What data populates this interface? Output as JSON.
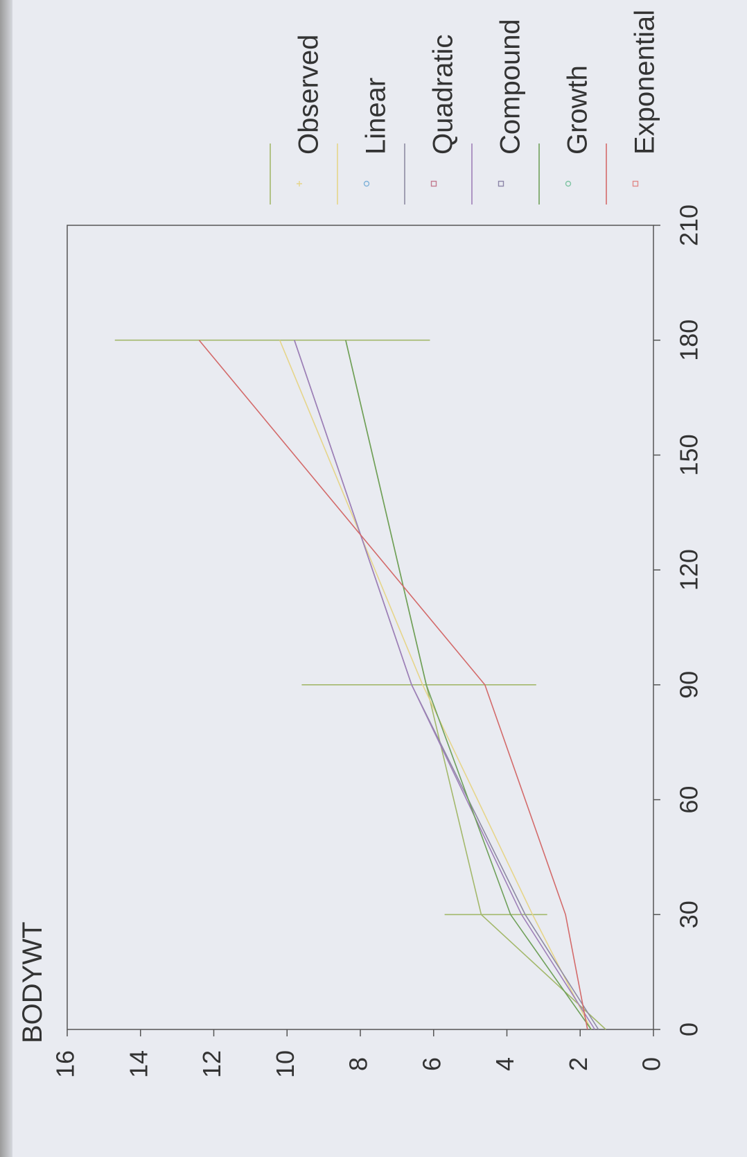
{
  "chart_data": {
    "type": "line",
    "title": "BODYWT",
    "orientation": "rotated-90-ccw",
    "xlim": [
      0,
      210
    ],
    "ylim": [
      0,
      16
    ],
    "x_ticks": [
      "0",
      "30",
      "60",
      "90",
      "120",
      "150",
      "180",
      "210"
    ],
    "y_ticks": [
      "0",
      "2",
      "4",
      "6",
      "8",
      "10",
      "12",
      "14",
      "16"
    ],
    "legend_position": "right",
    "observed": {
      "name": "Observed",
      "color": "#a3b86b",
      "ranges": [
        {
          "x": 30,
          "low": 2.9,
          "high": 5.7
        },
        {
          "x": 90,
          "low": 3.2,
          "high": 9.6
        },
        {
          "x": 180,
          "low": 6.1,
          "high": 14.7
        }
      ],
      "values": [
        {
          "x": 0,
          "y": 1.3
        },
        {
          "x": 30,
          "y": 4.7
        },
        {
          "x": 90,
          "y": 6.2
        },
        {
          "x": 180,
          "y": 8.4
        }
      ]
    },
    "series": [
      {
        "name": "Linear",
        "color": "#e6d58a",
        "marker": "circle",
        "marker_color": "#7fb2d9",
        "values": [
          {
            "x": 0,
            "y": 1.7
          },
          {
            "x": 30,
            "y": 3.3
          },
          {
            "x": 90,
            "y": 6.3
          },
          {
            "x": 180,
            "y": 10.2
          }
        ]
      },
      {
        "name": "Quadratic",
        "color": "#8e8aa3",
        "marker": "square",
        "marker_color": "#c27a8f",
        "values": [
          {
            "x": 0,
            "y": 1.5
          },
          {
            "x": 30,
            "y": 3.5
          },
          {
            "x": 90,
            "y": 6.6
          },
          {
            "x": 180,
            "y": 9.8
          }
        ]
      },
      {
        "name": "Compound",
        "color": "#9e7fb8",
        "marker": "square",
        "marker_color": "#8c85a8",
        "values": [
          {
            "x": 0,
            "y": 1.6
          },
          {
            "x": 30,
            "y": 3.6
          },
          {
            "x": 90,
            "y": 6.6
          },
          {
            "x": 180,
            "y": 9.8
          }
        ]
      },
      {
        "name": "Growth",
        "color": "#6fa05a",
        "marker": "circle",
        "marker_color": "#7fc4a3",
        "values": [
          {
            "x": 0,
            "y": 1.7
          },
          {
            "x": 30,
            "y": 3.9
          },
          {
            "x": 90,
            "y": 6.2
          },
          {
            "x": 180,
            "y": 8.4
          }
        ]
      },
      {
        "name": "Exponential",
        "color": "#d36a6a",
        "marker": "square",
        "marker_color": "#e08a8a",
        "values": [
          {
            "x": 0,
            "y": 1.8
          },
          {
            "x": 30,
            "y": 2.4
          },
          {
            "x": 90,
            "y": 4.6
          },
          {
            "x": 180,
            "y": 12.4
          }
        ]
      }
    ]
  }
}
